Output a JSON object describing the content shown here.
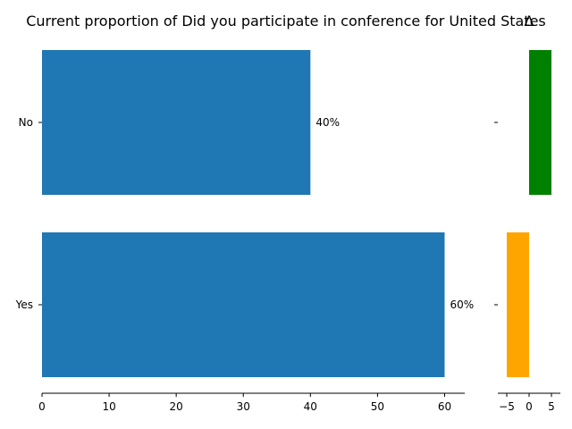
{
  "title": "Current proportion of Did you participate in conference for United States",
  "delta_title": "Δ",
  "colors": {
    "main_bar": "#1f77b4",
    "delta_positive": "#008000",
    "delta_negative": "#ffa500"
  },
  "chart_data": [
    {
      "type": "bar",
      "orientation": "horizontal",
      "title": "Current proportion of Did you participate in conference for United States",
      "categories": [
        "No",
        "Yes"
      ],
      "values": [
        40,
        60
      ],
      "data_labels": [
        "40%",
        "60%"
      ],
      "xlim": [
        0,
        63
      ],
      "xticks": [
        0,
        10,
        20,
        30,
        40,
        50,
        60
      ],
      "grid": false
    },
    {
      "type": "bar",
      "orientation": "horizontal",
      "title": "Δ",
      "categories": [
        "No",
        "Yes"
      ],
      "values": [
        5,
        -5
      ],
      "xlim": [
        -7,
        7
      ],
      "xticks": [
        -5,
        0,
        5
      ],
      "xtick_labels": [
        "−5",
        "0",
        "5"
      ],
      "grid": false
    }
  ]
}
